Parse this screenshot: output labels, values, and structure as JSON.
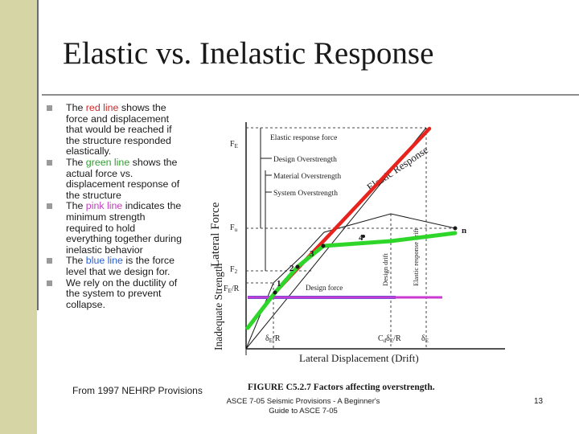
{
  "slide": {
    "title": "Elastic vs. Inelastic Response",
    "bullets": [
      {
        "pre": "The ",
        "hl": "red line",
        "post": " shows the force and displacement that would be reached if the structure responded elastically.",
        "color": "#d42626"
      },
      {
        "pre": "The ",
        "hl": "green line",
        "post": " shows the actual force vs. displacement response of the structure",
        "color": "#2e9e2e"
      },
      {
        "pre": "The ",
        "hl": "pink line",
        "post": " indicates the minimum strength required to hold everything together during inelastic behavior",
        "color": "#c040c0"
      },
      {
        "pre": "The ",
        "hl": "blue line",
        "post": " is the force level that we design for.",
        "color": "#2b5fd1"
      },
      {
        "pre": "We rely on the ductility of the system to prevent collapse.",
        "hl": "",
        "post": "",
        "color": "#1a1a1a"
      }
    ],
    "source": "From 1997 NEHRP Provisions",
    "footer": "ASCE 7-05 Seismic Provisions - A Beginner's Guide to ASCE 7-05",
    "page_number": "13"
  },
  "figure": {
    "caption": "FIGURE C5.2.7 Factors affecting overstrength.",
    "y_axis_label": "Lateral Force",
    "x_axis_label": "Lateral Displacement (Drift)",
    "inadequate_strength_label": "Inadequate Strength",
    "elastic_response_label": "Elastic Response",
    "legend": {
      "elastic_force": "Elastic response force",
      "design_overstrength": "Design Overstrength",
      "material_overstrength": "Material Overstrength",
      "system_overstrength": "System Overstrength",
      "design_force": "Design force"
    },
    "y_ticks": {
      "fe": "F",
      "fe_sub": "E",
      "fu": "F",
      "fu_sub": "u",
      "f2": "F",
      "f2_sub": "2",
      "fer": "F",
      "fer_sub": "E",
      "fer_tail": "/R"
    },
    "x_ticks": {
      "de_r": "δ",
      "de_r_sub": "E",
      "de_r_tail": "/R",
      "cd": "C",
      "cd_sub": "d",
      "cd_mid": "δ",
      "cd_mid_sub": "E",
      "cd_tail": "/R",
      "de": "δ",
      "de_sub": "E"
    },
    "drift_labels": {
      "design_drift": "Design drift",
      "elastic_drift": "Elastic response drift"
    },
    "point_labels": [
      "1",
      "2",
      "3",
      "4",
      "n"
    ],
    "colors": {
      "elastic": "#e8221c",
      "actual": "#2fd62a",
      "min_strength": "#c83ad0",
      "design": "#2a64d6"
    }
  }
}
